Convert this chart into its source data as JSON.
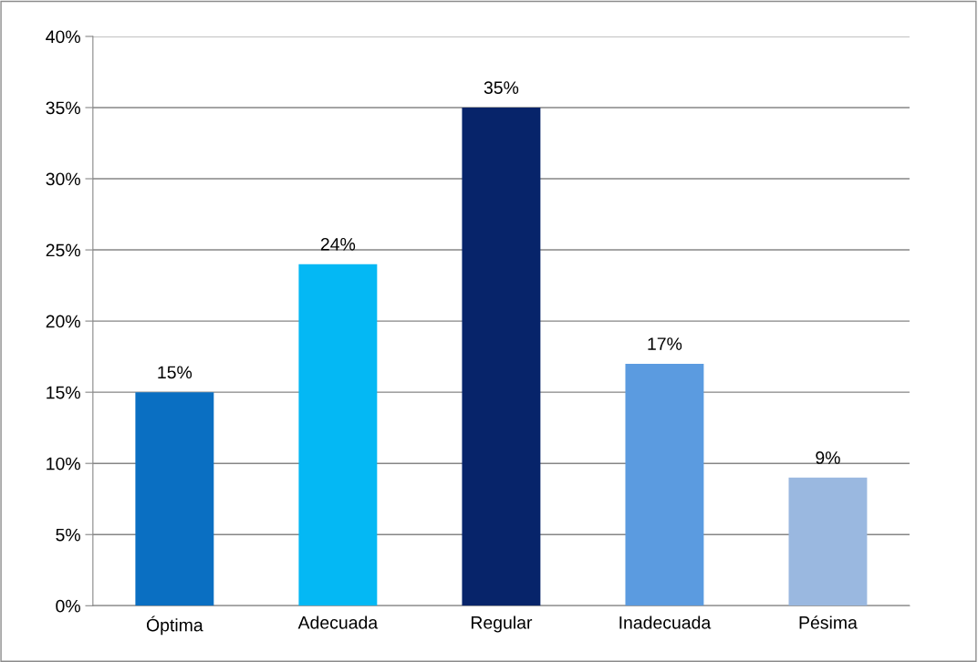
{
  "chart_data": {
    "type": "bar",
    "categories": [
      "Óptima",
      "Adecuada",
      "Regular",
      "Inadecuada",
      "Pésima"
    ],
    "values": [
      15,
      24,
      35,
      17,
      9
    ],
    "value_labels": [
      "15%",
      "24%",
      "35%",
      "17%",
      "9%"
    ],
    "colors": [
      "#0a6fc2",
      "#04b8f4",
      "#07246a",
      "#5b9be0",
      "#9ab8e0"
    ],
    "ylim": [
      0,
      40
    ],
    "yticks": [
      {
        "value": 0,
        "label": "0%"
      },
      {
        "value": 5,
        "label": "5%"
      },
      {
        "value": 10,
        "label": "10%"
      },
      {
        "value": 15,
        "label": "15%"
      },
      {
        "value": 20,
        "label": "20%"
      },
      {
        "value": 25,
        "label": "25%"
      },
      {
        "value": 30,
        "label": "30%"
      },
      {
        "value": 35,
        "label": "35%"
      },
      {
        "value": 40,
        "label": "40%"
      }
    ],
    "grid": "y",
    "legend": false
  }
}
